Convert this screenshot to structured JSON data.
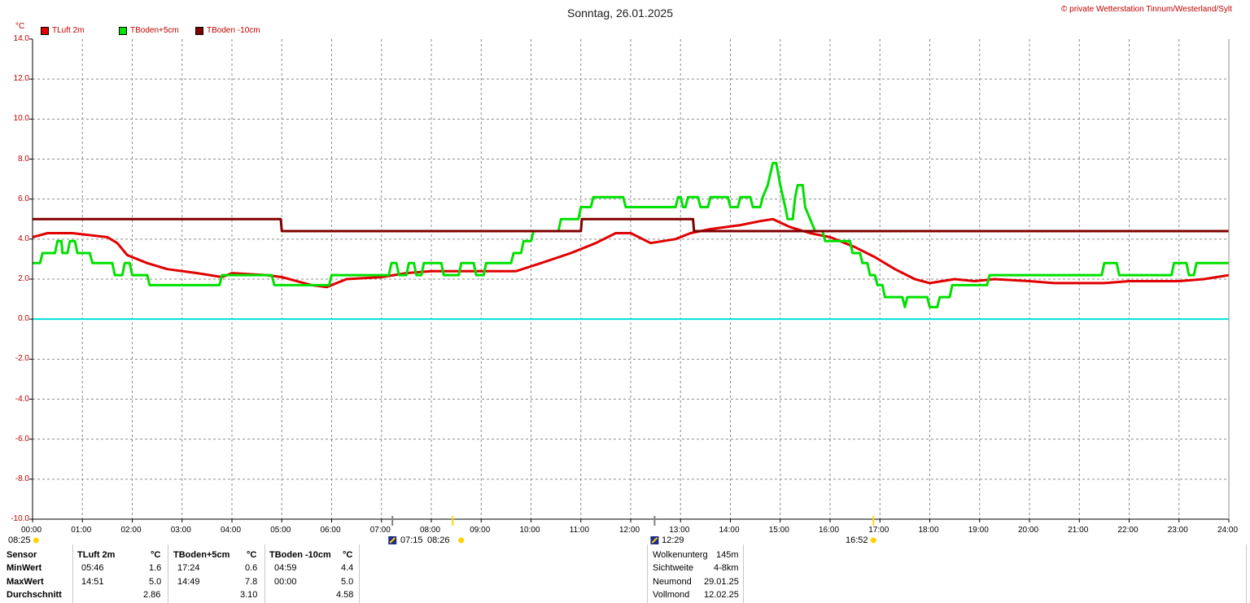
{
  "page": {
    "title": "Sonntag, 26.01.2025",
    "copyright": "© private Wetterstation Tinnum/Westerland/Sylt",
    "unit": "°C"
  },
  "chart_data": {
    "type": "line",
    "title": "Sonntag, 26.01.2025",
    "ylabel": "°C",
    "ylim": [
      -10,
      14
    ],
    "xlim": [
      0,
      24
    ],
    "grid": true,
    "legend_position": "top-left",
    "y_ticks": [
      "14.0",
      "12.0",
      "10.0",
      "8.0",
      "6.0",
      "4.0",
      "2.0",
      "0.0",
      "-2.0",
      "-4.0",
      "-6.0",
      "-8.0",
      "-10.0"
    ],
    "x_ticks": [
      "00:00",
      "01:00",
      "02:00",
      "03:00",
      "04:00",
      "05:00",
      "06:00",
      "07:00",
      "08:00",
      "09:00",
      "10:00",
      "11:00",
      "12:00",
      "13:00",
      "14:00",
      "15:00",
      "16:00",
      "17:00",
      "18:00",
      "19:00",
      "20:00",
      "21:00",
      "22:00",
      "23:00",
      "24:00"
    ],
    "reference_line": {
      "y": 0,
      "color": "#00e0e0"
    },
    "series": [
      {
        "name": "TLuft 2m",
        "color": "#e00000",
        "points": [
          [
            0,
            4.1
          ],
          [
            0.3,
            4.3
          ],
          [
            0.8,
            4.3
          ],
          [
            1.5,
            4.1
          ],
          [
            1.7,
            3.8
          ],
          [
            1.9,
            3.2
          ],
          [
            2.3,
            2.8
          ],
          [
            2.7,
            2.5
          ],
          [
            3.3,
            2.3
          ],
          [
            3.8,
            2.1
          ],
          [
            4.0,
            2.3
          ],
          [
            4.7,
            2.2
          ],
          [
            5.0,
            2.1
          ],
          [
            5.6,
            1.7
          ],
          [
            5.9,
            1.6
          ],
          [
            6.3,
            2.0
          ],
          [
            7.0,
            2.1
          ],
          [
            7.5,
            2.3
          ],
          [
            8.0,
            2.4
          ],
          [
            8.5,
            2.4
          ],
          [
            9.0,
            2.4
          ],
          [
            9.7,
            2.4
          ],
          [
            10.2,
            2.8
          ],
          [
            10.8,
            3.3
          ],
          [
            11.3,
            3.8
          ],
          [
            11.7,
            4.3
          ],
          [
            12.0,
            4.3
          ],
          [
            12.4,
            3.8
          ],
          [
            12.9,
            4.0
          ],
          [
            13.2,
            4.3
          ],
          [
            13.6,
            4.5
          ],
          [
            14.2,
            4.7
          ],
          [
            14.6,
            4.9
          ],
          [
            14.85,
            5.0
          ],
          [
            15.2,
            4.6
          ],
          [
            15.6,
            4.3
          ],
          [
            16.0,
            4.1
          ],
          [
            16.5,
            3.6
          ],
          [
            16.9,
            3.1
          ],
          [
            17.3,
            2.5
          ],
          [
            17.7,
            2.0
          ],
          [
            18.0,
            1.8
          ],
          [
            18.5,
            2.0
          ],
          [
            18.9,
            1.9
          ],
          [
            19.3,
            2.0
          ],
          [
            20.0,
            1.9
          ],
          [
            20.5,
            1.8
          ],
          [
            21.0,
            1.8
          ],
          [
            21.5,
            1.8
          ],
          [
            22.0,
            1.9
          ],
          [
            22.5,
            1.9
          ],
          [
            23.0,
            1.9
          ],
          [
            23.5,
            2.0
          ],
          [
            24.0,
            2.2
          ]
        ]
      },
      {
        "name": "TBoden+5cm",
        "color": "#00e000",
        "points": [
          [
            0,
            2.8
          ],
          [
            0.15,
            2.8
          ],
          [
            0.2,
            3.3
          ],
          [
            0.45,
            3.3
          ],
          [
            0.5,
            3.9
          ],
          [
            0.58,
            3.9
          ],
          [
            0.6,
            3.3
          ],
          [
            0.7,
            3.3
          ],
          [
            0.75,
            3.9
          ],
          [
            0.85,
            3.9
          ],
          [
            0.9,
            3.3
          ],
          [
            1.15,
            3.3
          ],
          [
            1.2,
            2.8
          ],
          [
            1.6,
            2.8
          ],
          [
            1.65,
            2.2
          ],
          [
            1.8,
            2.2
          ],
          [
            1.85,
            2.8
          ],
          [
            1.95,
            2.8
          ],
          [
            2.0,
            2.2
          ],
          [
            2.3,
            2.2
          ],
          [
            2.35,
            1.7
          ],
          [
            3.75,
            1.7
          ],
          [
            3.8,
            2.2
          ],
          [
            4.8,
            2.2
          ],
          [
            4.85,
            1.7
          ],
          [
            5.95,
            1.7
          ],
          [
            6.0,
            2.2
          ],
          [
            7.15,
            2.2
          ],
          [
            7.2,
            2.8
          ],
          [
            7.3,
            2.8
          ],
          [
            7.35,
            2.2
          ],
          [
            7.5,
            2.2
          ],
          [
            7.55,
            2.8
          ],
          [
            7.65,
            2.8
          ],
          [
            7.7,
            2.2
          ],
          [
            7.8,
            2.2
          ],
          [
            7.85,
            2.8
          ],
          [
            8.2,
            2.8
          ],
          [
            8.25,
            2.2
          ],
          [
            8.55,
            2.2
          ],
          [
            8.6,
            2.8
          ],
          [
            8.85,
            2.8
          ],
          [
            8.9,
            2.2
          ],
          [
            9.05,
            2.2
          ],
          [
            9.1,
            2.8
          ],
          [
            9.6,
            2.8
          ],
          [
            9.65,
            3.3
          ],
          [
            9.8,
            3.3
          ],
          [
            9.85,
            3.9
          ],
          [
            10.0,
            3.9
          ],
          [
            10.05,
            4.4
          ],
          [
            10.55,
            4.4
          ],
          [
            10.6,
            5.0
          ],
          [
            10.95,
            5.0
          ],
          [
            11.0,
            5.6
          ],
          [
            11.2,
            5.6
          ],
          [
            11.25,
            6.1
          ],
          [
            11.85,
            6.1
          ],
          [
            11.9,
            5.6
          ],
          [
            12.9,
            5.6
          ],
          [
            12.95,
            6.1
          ],
          [
            13.0,
            6.1
          ],
          [
            13.05,
            5.6
          ],
          [
            13.1,
            5.6
          ],
          [
            13.15,
            6.1
          ],
          [
            13.35,
            6.1
          ],
          [
            13.4,
            5.6
          ],
          [
            13.55,
            5.6
          ],
          [
            13.6,
            6.1
          ],
          [
            13.95,
            6.1
          ],
          [
            14.0,
            5.6
          ],
          [
            14.15,
            5.6
          ],
          [
            14.2,
            6.1
          ],
          [
            14.4,
            6.1
          ],
          [
            14.45,
            5.6
          ],
          [
            14.6,
            5.6
          ],
          [
            14.65,
            6.1
          ],
          [
            14.75,
            6.7
          ],
          [
            14.85,
            7.8
          ],
          [
            14.92,
            7.8
          ],
          [
            15.0,
            6.7
          ],
          [
            15.1,
            5.6
          ],
          [
            15.15,
            5.0
          ],
          [
            15.25,
            5.0
          ],
          [
            15.3,
            6.1
          ],
          [
            15.35,
            6.7
          ],
          [
            15.45,
            6.7
          ],
          [
            15.5,
            5.6
          ],
          [
            15.6,
            5.0
          ],
          [
            15.7,
            4.4
          ],
          [
            15.85,
            4.4
          ],
          [
            15.9,
            3.9
          ],
          [
            16.4,
            3.9
          ],
          [
            16.45,
            3.3
          ],
          [
            16.6,
            3.3
          ],
          [
            16.65,
            2.8
          ],
          [
            16.75,
            2.8
          ],
          [
            16.8,
            2.2
          ],
          [
            16.9,
            2.2
          ],
          [
            16.95,
            1.7
          ],
          [
            17.05,
            1.7
          ],
          [
            17.1,
            1.1
          ],
          [
            17.45,
            1.1
          ],
          [
            17.5,
            0.6
          ],
          [
            17.55,
            1.1
          ],
          [
            17.95,
            1.1
          ],
          [
            18.0,
            0.6
          ],
          [
            18.15,
            0.6
          ],
          [
            18.2,
            1.1
          ],
          [
            18.4,
            1.1
          ],
          [
            18.45,
            1.7
          ],
          [
            19.15,
            1.7
          ],
          [
            19.2,
            2.2
          ],
          [
            21.45,
            2.2
          ],
          [
            21.5,
            2.8
          ],
          [
            21.75,
            2.8
          ],
          [
            21.8,
            2.2
          ],
          [
            22.85,
            2.2
          ],
          [
            22.9,
            2.8
          ],
          [
            23.15,
            2.8
          ],
          [
            23.2,
            2.2
          ],
          [
            23.3,
            2.2
          ],
          [
            23.35,
            2.8
          ],
          [
            24.0,
            2.8
          ]
        ]
      },
      {
        "name": "TBoden -10cm",
        "color": "#800000",
        "points": [
          [
            0,
            5.0
          ],
          [
            4.98,
            5.0
          ],
          [
            5.0,
            4.4
          ],
          [
            11.0,
            4.4
          ],
          [
            11.02,
            5.0
          ],
          [
            13.25,
            5.0
          ],
          [
            13.27,
            4.4
          ],
          [
            24.0,
            4.4
          ]
        ]
      }
    ]
  },
  "markers": {
    "sun_times": [
      "08:25",
      "07:15",
      "08:26",
      "16:52"
    ],
    "moon_time": "12:29",
    "tick_times": [
      7.22,
      8.43,
      12.48,
      16.87
    ],
    "sun_dot_times": [
      0.07,
      8.6,
      16.87
    ],
    "moon_icon_times": [
      7.22,
      12.48
    ],
    "yellow_tick_times": [
      8.43,
      16.87
    ],
    "gray_tick_times": [
      7.22,
      12.48
    ]
  },
  "table": {
    "row_labels": [
      "Sensor",
      "MinWert",
      "MaxWert",
      "Durchschnitt"
    ],
    "columns": [
      {
        "header": "TLuft 2m",
        "unit": "°C",
        "min_time": "05:46",
        "min": "1.6",
        "max_time": "14:51",
        "max": "5.0",
        "avg": "2.86"
      },
      {
        "header": "TBoden+5cm",
        "unit": "°C",
        "min_time": "17:24",
        "min": "0.6",
        "max_time": "14:49",
        "max": "7.8",
        "avg": "3.10"
      },
      {
        "header": "TBoden -10cm",
        "unit": "°C",
        "min_time": "04:59",
        "min": "4.4",
        "max_time": "00:00",
        "max": "5.0",
        "avg": "4.58"
      }
    ]
  },
  "info": [
    {
      "label": "Wolkenunterg",
      "value": "145m"
    },
    {
      "label": "Sichtweite",
      "value": "4-8km"
    },
    {
      "label": "Neumond",
      "value": "29.01.25"
    },
    {
      "label": "Vollmond",
      "value": "12.02.25"
    }
  ]
}
